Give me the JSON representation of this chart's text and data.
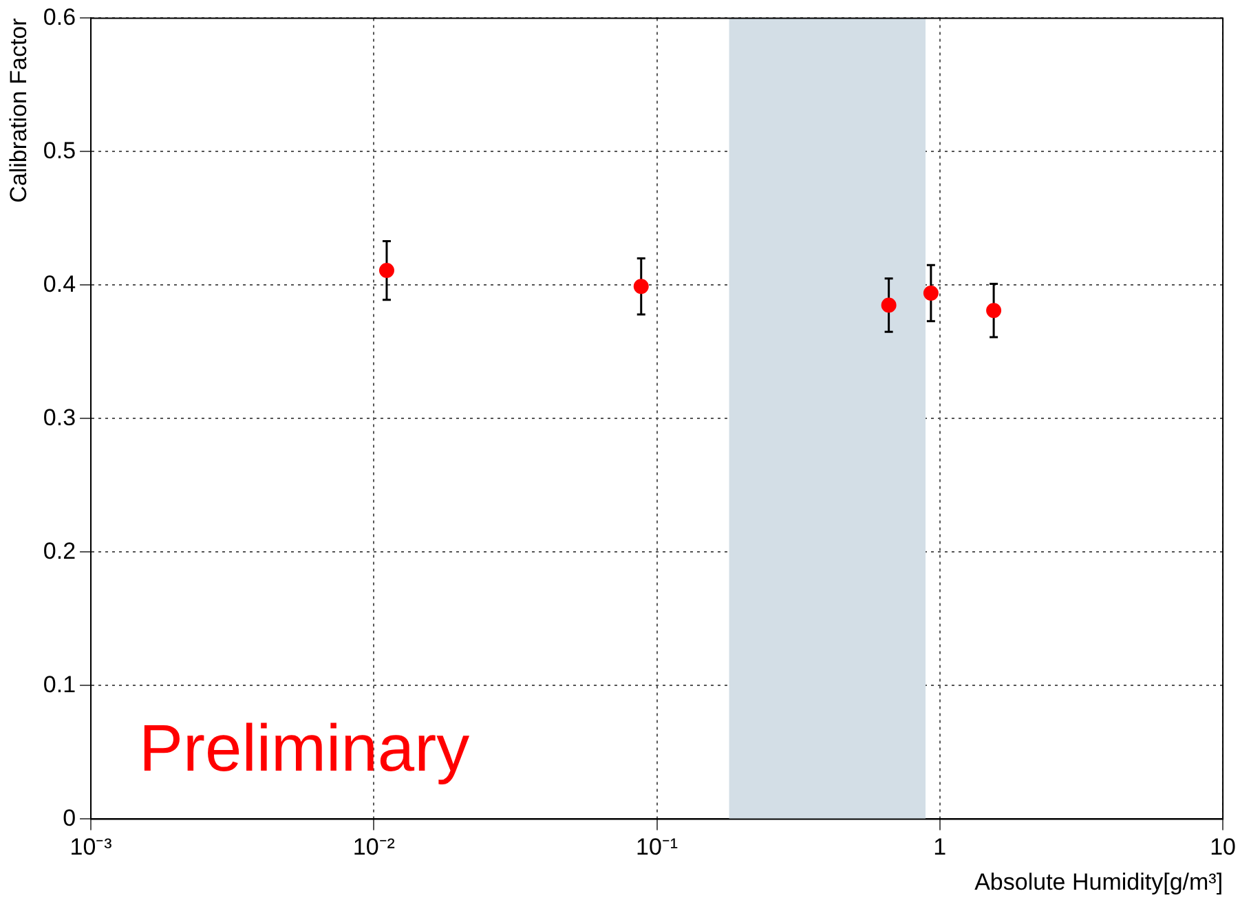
{
  "chart_data": {
    "type": "scatter",
    "xlabel": "Absolute Humidity[g/m³]",
    "ylabel": "Calibration Factor",
    "log": "x",
    "grid": true,
    "marker": "circle",
    "legend": false,
    "xlim": [
      0.001,
      10
    ],
    "xticks": [
      {
        "value": 0.001,
        "label": "10⁻³"
      },
      {
        "value": 0.01,
        "label": "10⁻²"
      },
      {
        "value": 0.1,
        "label": "10⁻¹"
      },
      1,
      10
    ],
    "ylim": [
      0,
      0.6
    ],
    "yticks": [
      0,
      0.1,
      0.2,
      0.3,
      0.4,
      0.5,
      0.6
    ],
    "series": [
      {
        "color": "#ff0000",
        "x": [
          0.0111,
          0.088,
          0.66,
          0.93,
          1.55
        ],
        "values": [
          0.411,
          0.399,
          0.385,
          0.394,
          0.381
        ],
        "errors": [
          0.022,
          0.021,
          0.02,
          0.021,
          0.02
        ]
      }
    ],
    "bands": [
      {
        "axis": "x",
        "from": 0.18,
        "to": 0.89,
        "color": "#d3dee6"
      }
    ],
    "annotations": [
      "Preliminary"
    ]
  }
}
